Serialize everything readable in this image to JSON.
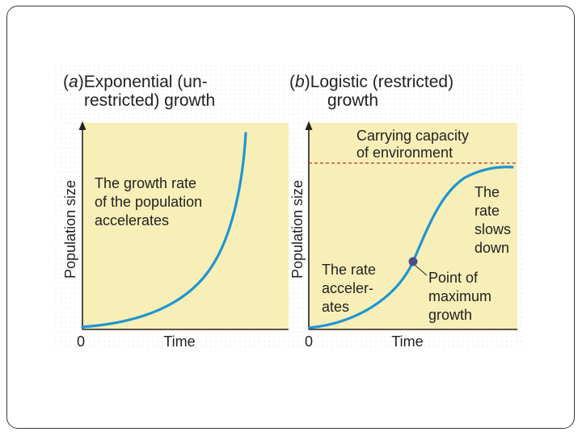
{
  "panel_a": {
    "letter": "a",
    "title_line1": "Exponential (un-",
    "title_line2": "restricted) growth",
    "ylabel": "Population size",
    "xlabel": "Time",
    "origin": "0",
    "annotation": [
      "The growth rate",
      "of the population",
      "accelerates"
    ]
  },
  "panel_b": {
    "letter": "b",
    "title_line1": "Logistic (restricted)",
    "title_line2": "growth",
    "ylabel": "Population size",
    "xlabel": "Time",
    "origin": "0",
    "capacity_label": [
      "Carrying capacity",
      "of environment"
    ],
    "slows_label": [
      "The",
      "rate",
      "slows",
      "down"
    ],
    "accel_label": [
      "The rate",
      "acceler-",
      "ates"
    ],
    "inflection_label": [
      "Point of",
      "maximum",
      "growth"
    ]
  },
  "colors": {
    "panel_bg": "#f8efb8",
    "curve": "#1f95d2",
    "capacity_line": "#b03040",
    "inflection_point": "#4a4f8c",
    "text": "#222222"
  }
}
